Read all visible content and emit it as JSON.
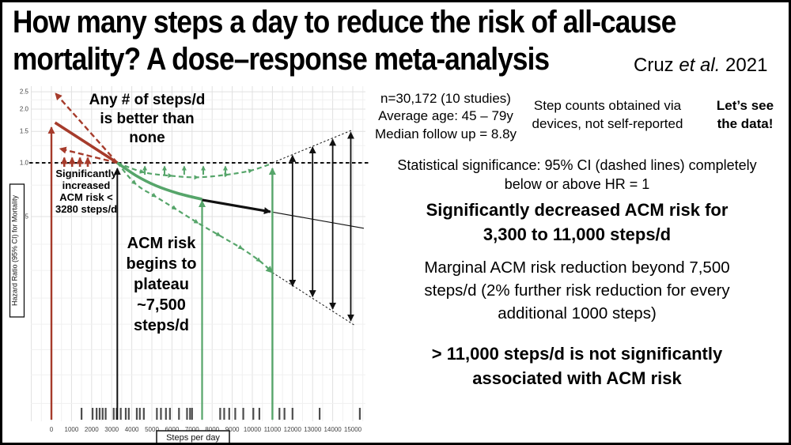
{
  "slide": {
    "title_line1": "How many steps a day to reduce the risk of all-cause",
    "title_line2": "mortality? A dose–response meta-analysis",
    "attribution_pre": "Cruz ",
    "attribution_italic": "et al.",
    "attribution_post": " 2021"
  },
  "study_info": {
    "sample": "n=30,172 (10 studies)",
    "age": "Average age: 45 – 79y",
    "followup": "Median follow up = 8.8y"
  },
  "device_note": "Step counts obtained via\ndevices, not self-reported",
  "lets_see": "Let’s see\nthe data!",
  "significance_note": "Statistical significance: 95% CI (dashed lines) completely\nbelow or above HR = 1",
  "findings": {
    "decreased": "Significantly decreased ACM risk for\n3,300 to 11,000 steps/d",
    "marginal": "Marginal ACM risk reduction beyond 7,500\nsteps/d (2% further risk reduction for every\nadditional 1000 steps)",
    "nonsignificant": "> 11,000 steps/d is not significantly\nassociated with ACM risk"
  },
  "chart_data": {
    "type": "line",
    "title": "",
    "xlabel": "Steps per day",
    "ylabel": "Hazard Ratio (95% CI) for Mortality",
    "x_ticks": [
      0,
      1000,
      2000,
      3000,
      4000,
      5000,
      6000,
      7000,
      8000,
      9000,
      10000,
      11000,
      12000,
      13000,
      14000,
      15000
    ],
    "y_ticks": [
      2.5,
      2.0,
      1.5,
      1.0,
      0.5
    ],
    "y_scale": "log",
    "x_range_steps": [
      -1000,
      15600
    ],
    "reference_hr": 1.0,
    "legend": "none",
    "grid": "on",
    "thresholds_steps": {
      "zero": 0,
      "sig_increase_below": 3280,
      "plateau": 7500,
      "nonsig_above": 11000
    },
    "series": {
      "zero_steps": {
        "point": 1.68,
        "ci_upper": 2.45,
        "ci_lower": 1.2
      },
      "point_curve": [
        [
          3280,
          1.0
        ],
        [
          4200,
          0.85
        ],
        [
          5200,
          0.745
        ],
        [
          6300,
          0.675
        ],
        [
          7500,
          0.625
        ]
      ],
      "marginal_arrow": [
        [
          7500,
          0.62
        ],
        [
          10900,
          0.532
        ]
      ],
      "post_point_line": [
        [
          11000,
          0.53
        ],
        [
          15550,
          0.43
        ]
      ],
      "ci_upper_curve": [
        [
          3280,
          1.0
        ],
        [
          4600,
          0.885
        ],
        [
          6000,
          0.845
        ],
        [
          7300,
          0.83
        ],
        [
          8800,
          0.86
        ],
        [
          10000,
          0.91
        ],
        [
          10900,
          0.985
        ]
      ],
      "ci_lower_curve": [
        [
          3280,
          1.0
        ],
        [
          4200,
          0.76
        ],
        [
          5200,
          0.645
        ],
        [
          6200,
          0.55
        ],
        [
          7300,
          0.46
        ],
        [
          8400,
          0.39
        ],
        [
          9500,
          0.33
        ],
        [
          10400,
          0.28
        ],
        [
          11000,
          0.243
        ]
      ],
      "post_ci_upper": [
        [
          11000,
          1.0
        ],
        [
          15000,
          1.53
        ]
      ],
      "post_ci_lower": [
        [
          11000,
          0.243
        ],
        [
          15100,
          0.123
        ]
      ],
      "ci_whiskers": [
        [
          12000,
          1.12,
          0.2
        ],
        [
          13000,
          1.25,
          0.175
        ],
        [
          14000,
          1.38,
          0.149
        ],
        [
          14900,
          1.51,
          0.128
        ]
      ]
    },
    "small_arrows": {
      "red_steps": [
        640,
        1030,
        1420,
        1810
      ],
      "green_steps": [
        4650,
        5630,
        6610,
        7560,
        8660
      ]
    },
    "rug_steps": [
      1500,
      2050,
      2250,
      2400,
      2550,
      2700,
      3100,
      3250,
      3450,
      3700,
      3850,
      4250,
      4400,
      4600,
      5250,
      5450,
      5700,
      5900,
      6350,
      6750,
      6900,
      7000,
      8400,
      8600,
      8850,
      9150,
      9550,
      10050,
      10350,
      11350,
      11600,
      12000,
      13350,
      15350
    ],
    "y_gridlines": [
      2.5,
      2.25,
      2.0,
      1.75,
      1.5,
      1.25,
      1.0,
      0.75,
      0.5,
      0.35,
      0.25,
      0.175,
      0.125,
      0.09,
      0.065,
      0.045
    ],
    "colors": {
      "risk_increase": "#a63b2b",
      "risk_decrease": "#56a56a",
      "reference": "#111111",
      "grid_major": "#e0e0e0",
      "grid_minor": "#f0f0f0",
      "rug": "#4d4d4d"
    },
    "annotations": {
      "better_than_none": "Any # of steps/d\nis better than\nnone",
      "sig_increase": "Significantly\nincreased\nACM risk <\n3280 steps/d",
      "plateau": "ACM risk\nbegins to\nplateau\n~7,500\nsteps/d"
    }
  }
}
